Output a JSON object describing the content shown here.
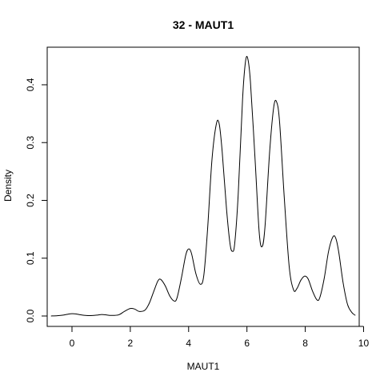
{
  "chart_data": {
    "type": "line",
    "title": "32 - MAUT1",
    "xlabel": "MAUT1",
    "ylabel": "Density",
    "xlim": [
      -0.85,
      9.85
    ],
    "ylim": [
      -0.018,
      0.465
    ],
    "x_ticks": [
      0,
      2,
      4,
      6,
      8,
      10
    ],
    "y_ticks": [
      0.0,
      0.1,
      0.2,
      0.3,
      0.4
    ],
    "x_tick_labels": [
      "0",
      "2",
      "4",
      "6",
      "8",
      "10"
    ],
    "y_tick_labels": [
      "0.0",
      "0.1",
      "0.2",
      "0.3",
      "0.4"
    ],
    "grid": false,
    "legend": "none",
    "series": [
      {
        "color": "#000000",
        "points": [
          [
            -0.72,
            0.0
          ],
          [
            -0.5,
            0.0005
          ],
          [
            -0.3,
            0.0015
          ],
          [
            -0.15,
            0.003
          ],
          [
            0.0,
            0.004
          ],
          [
            0.15,
            0.0035
          ],
          [
            0.3,
            0.002
          ],
          [
            0.5,
            0.0008
          ],
          [
            0.7,
            0.0008
          ],
          [
            0.85,
            0.0015
          ],
          [
            1.0,
            0.0025
          ],
          [
            1.15,
            0.002
          ],
          [
            1.35,
            0.001
          ],
          [
            1.6,
            0.002
          ],
          [
            1.8,
            0.008
          ],
          [
            2.0,
            0.013
          ],
          [
            2.15,
            0.012
          ],
          [
            2.3,
            0.008
          ],
          [
            2.5,
            0.01
          ],
          [
            2.65,
            0.022
          ],
          [
            2.8,
            0.042
          ],
          [
            2.95,
            0.061
          ],
          [
            3.05,
            0.063
          ],
          [
            3.2,
            0.052
          ],
          [
            3.35,
            0.035
          ],
          [
            3.5,
            0.026
          ],
          [
            3.6,
            0.031
          ],
          [
            3.75,
            0.065
          ],
          [
            3.9,
            0.105
          ],
          [
            4.0,
            0.116
          ],
          [
            4.1,
            0.108
          ],
          [
            4.25,
            0.073
          ],
          [
            4.4,
            0.055
          ],
          [
            4.52,
            0.07
          ],
          [
            4.65,
            0.15
          ],
          [
            4.8,
            0.27
          ],
          [
            4.95,
            0.332
          ],
          [
            5.05,
            0.332
          ],
          [
            5.15,
            0.285
          ],
          [
            5.3,
            0.185
          ],
          [
            5.42,
            0.125
          ],
          [
            5.5,
            0.112
          ],
          [
            5.58,
            0.125
          ],
          [
            5.7,
            0.21
          ],
          [
            5.85,
            0.375
          ],
          [
            5.95,
            0.44
          ],
          [
            6.03,
            0.445
          ],
          [
            6.12,
            0.405
          ],
          [
            6.28,
            0.27
          ],
          [
            6.42,
            0.145
          ],
          [
            6.52,
            0.12
          ],
          [
            6.62,
            0.155
          ],
          [
            6.78,
            0.285
          ],
          [
            6.92,
            0.362
          ],
          [
            7.02,
            0.37
          ],
          [
            7.12,
            0.335
          ],
          [
            7.28,
            0.205
          ],
          [
            7.45,
            0.085
          ],
          [
            7.6,
            0.045
          ],
          [
            7.72,
            0.048
          ],
          [
            7.85,
            0.062
          ],
          [
            7.98,
            0.069
          ],
          [
            8.1,
            0.064
          ],
          [
            8.25,
            0.043
          ],
          [
            8.4,
            0.028
          ],
          [
            8.5,
            0.032
          ],
          [
            8.65,
            0.065
          ],
          [
            8.8,
            0.112
          ],
          [
            8.95,
            0.137
          ],
          [
            9.05,
            0.134
          ],
          [
            9.15,
            0.11
          ],
          [
            9.3,
            0.057
          ],
          [
            9.45,
            0.02
          ],
          [
            9.6,
            0.006
          ],
          [
            9.72,
            0.001
          ]
        ]
      }
    ]
  }
}
